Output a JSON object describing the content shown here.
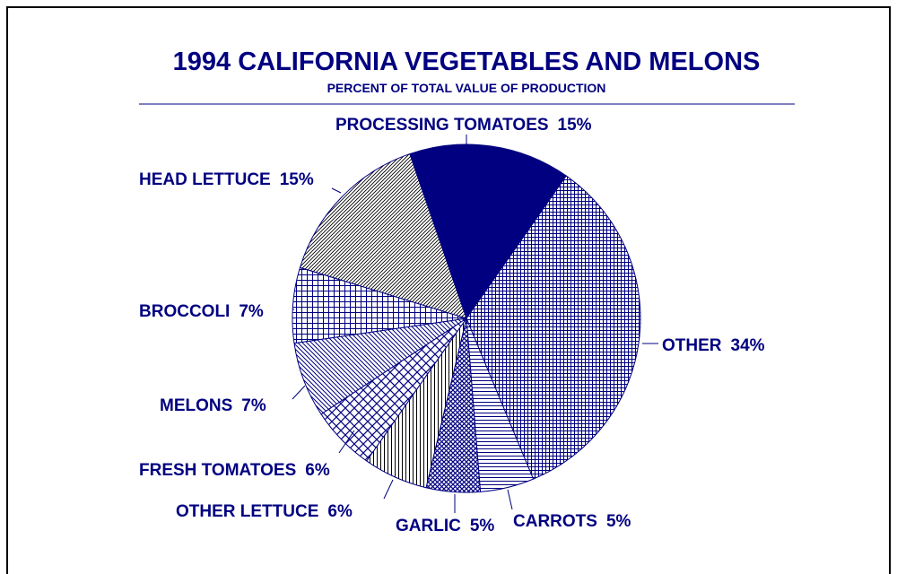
{
  "chart_data": {
    "type": "pie",
    "title": "1994 CALIFORNIA VEGETABLES AND MELONS",
    "subtitle": "PERCENT OF TOTAL VALUE OF PRODUCTION",
    "categories": [
      "PROCESSING TOMATOES",
      "OTHER",
      "CARROTS",
      "GARLIC",
      "OTHER LETTUCE",
      "FRESH TOMATOES",
      "MELONS",
      "BROCCOLI",
      "HEAD LETTUCE"
    ],
    "values": [
      15,
      34,
      5,
      5,
      6,
      6,
      7,
      7,
      15
    ],
    "value_labels": [
      "15%",
      "34%",
      "5%",
      "5%",
      "6%",
      "6%",
      "7%",
      "7%",
      "15%"
    ],
    "color": "#000080"
  }
}
